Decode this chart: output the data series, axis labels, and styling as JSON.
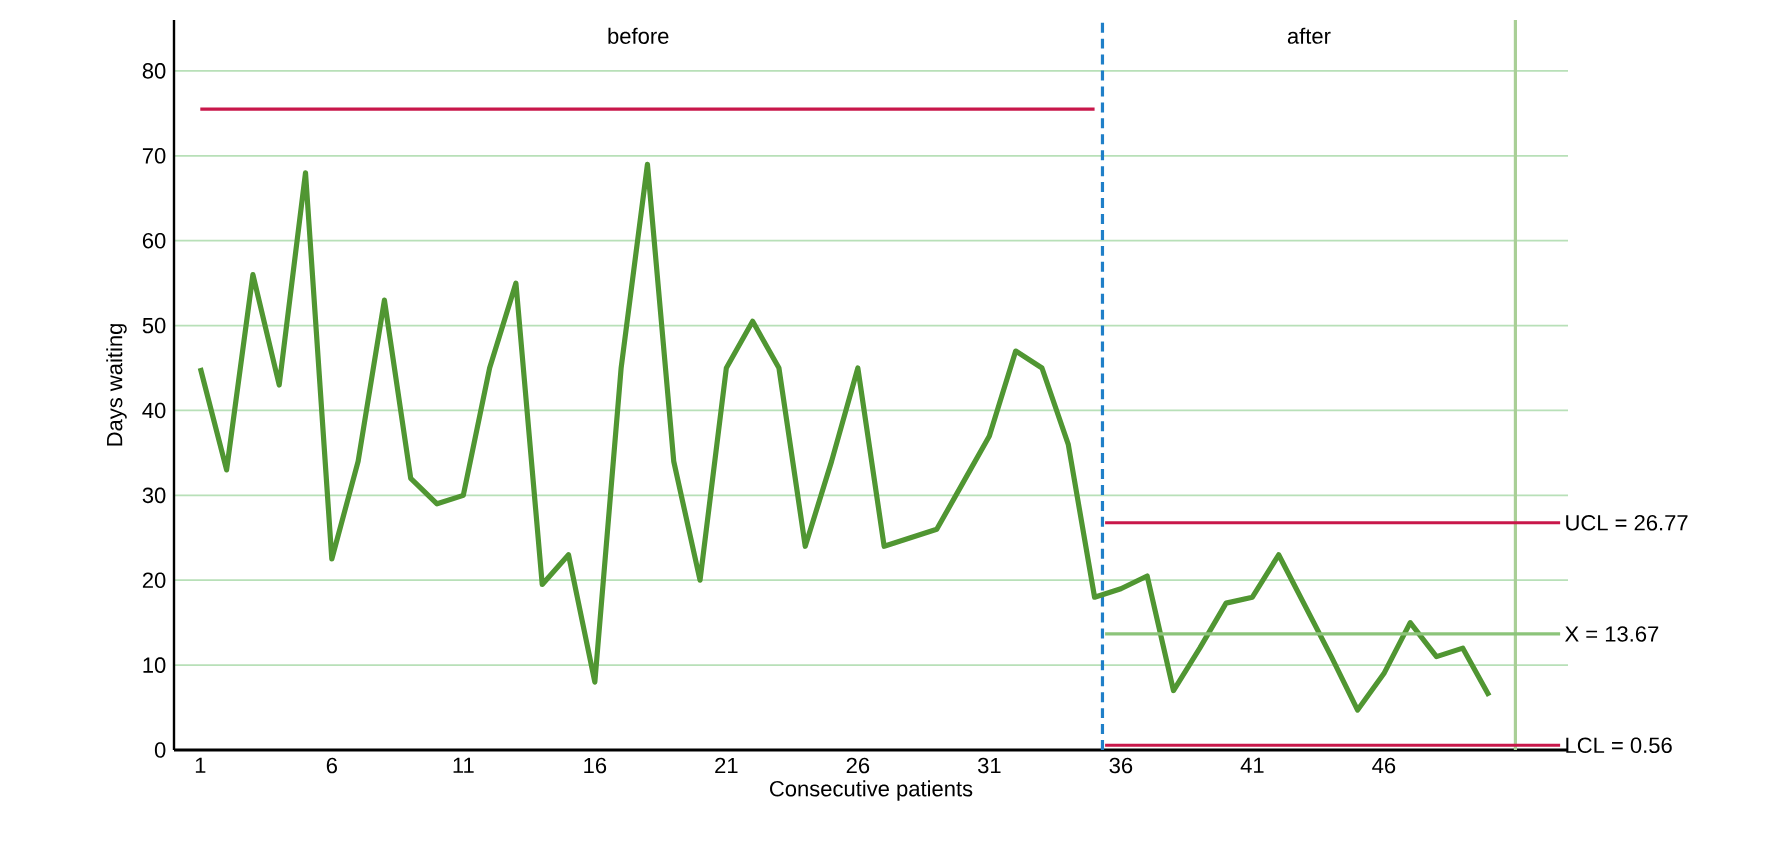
{
  "chart_data": {
    "type": "line",
    "xlabel": "Consecutive patients",
    "ylabel": "Days waiting",
    "xlim": [
      0,
      53
    ],
    "ylim": [
      0,
      86
    ],
    "xticks": [
      1,
      6,
      11,
      16,
      21,
      26,
      31,
      36,
      41,
      46
    ],
    "yticks": [
      0,
      10,
      20,
      30,
      40,
      50,
      60,
      70,
      80
    ],
    "grid": "y",
    "series": [
      {
        "x": [
          1,
          2,
          3,
          4,
          5,
          6,
          7,
          8,
          9,
          10,
          11,
          12,
          13,
          14,
          15,
          16,
          17,
          18,
          19,
          20,
          21,
          22,
          23,
          24,
          25,
          26,
          27,
          28,
          29,
          30,
          31,
          32,
          33,
          34,
          35,
          36,
          37,
          38,
          39,
          40,
          41,
          42,
          43,
          44,
          45,
          46,
          47,
          48,
          49,
          50
        ],
        "values": [
          45,
          33,
          56,
          43,
          68,
          22.5,
          34,
          53,
          32,
          29,
          30,
          45,
          55,
          19.5,
          23,
          8,
          45,
          69,
          34,
          20,
          45,
          50.5,
          45,
          24,
          34,
          45,
          24,
          25,
          26,
          31.5,
          37,
          47,
          45,
          36,
          18,
          19,
          20.5,
          7,
          12,
          17.3,
          18,
          23,
          17,
          11,
          4.7,
          9,
          15,
          11,
          12,
          6.4
        ],
        "color": "#509632"
      },
      {
        "x": [
          1,
          35
        ],
        "values": [
          75.5,
          75.5
        ],
        "color": "#c8174a"
      },
      {
        "name": "UCL = 26.77",
        "x": [
          35.4,
          52.7
        ],
        "values": [
          26.77,
          26.77
        ],
        "color": "#c8174a"
      },
      {
        "name": "X = 13.67",
        "x": [
          35.4,
          52.7
        ],
        "values": [
          13.67,
          13.67
        ],
        "color": "#8cc47a"
      },
      {
        "name": "LCL = 0.56",
        "x": [
          35.4,
          52.7
        ],
        "values": [
          0.56,
          0.56
        ],
        "color": "#c8174a"
      }
    ],
    "ref_lines": [
      {
        "axis": "x",
        "value": 35.3,
        "color": "#1f7fc8",
        "line_style": "dashed"
      },
      {
        "axis": "x",
        "value": 51,
        "color": "#a9cf96"
      }
    ],
    "annotations": [
      "before",
      "after"
    ]
  }
}
